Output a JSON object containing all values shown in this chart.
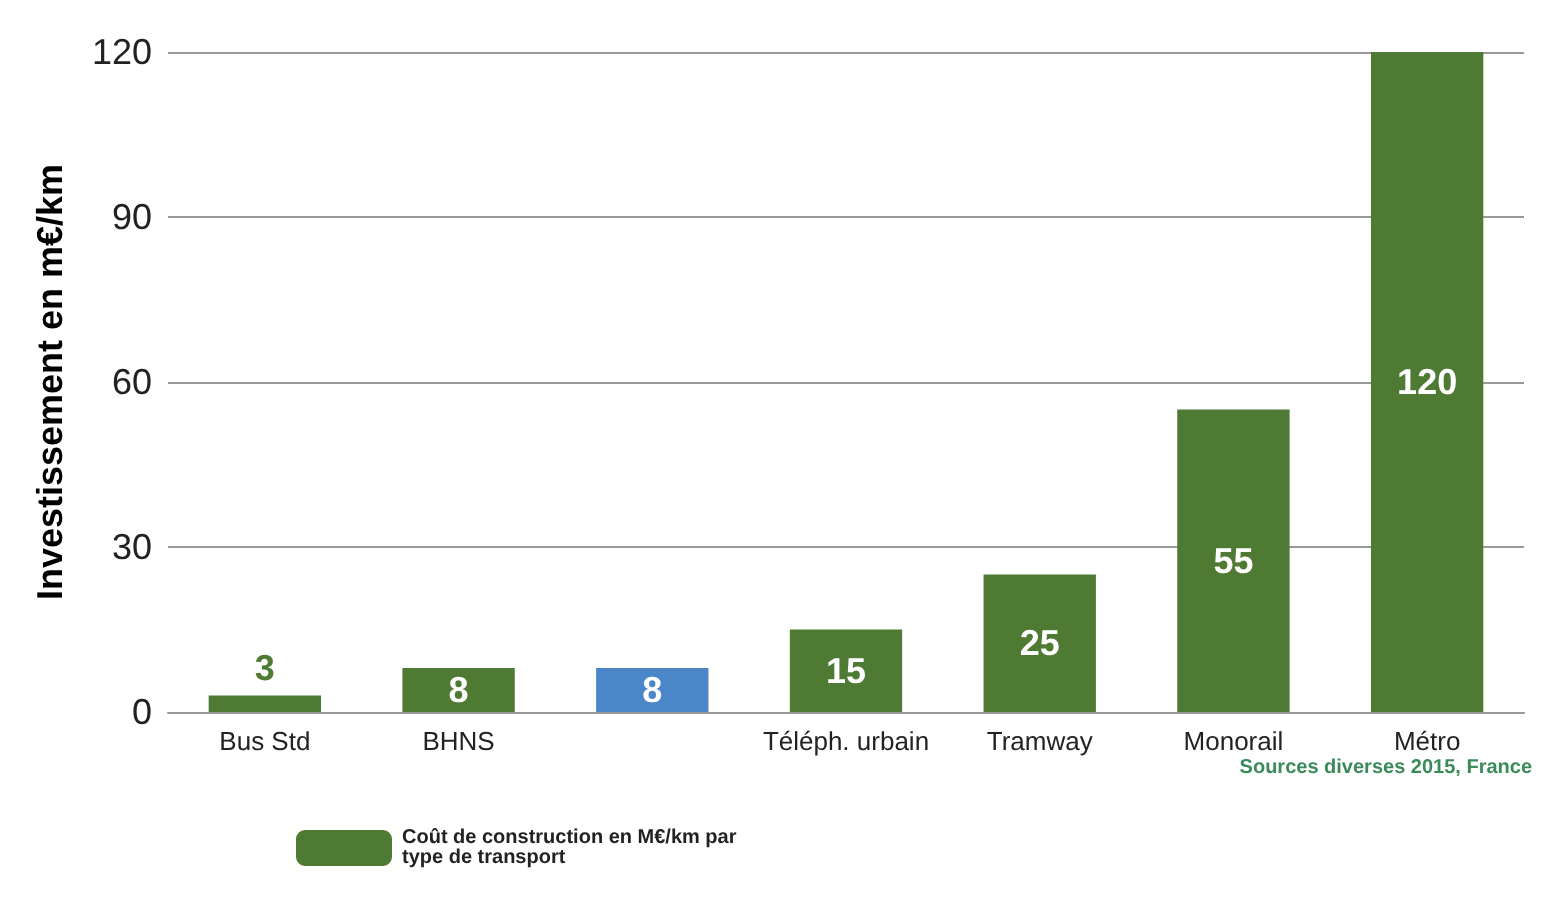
{
  "chart_data": {
    "type": "bar",
    "ylabel": "Investissement en m€/km",
    "categories": [
      "Bus Std",
      "BHNS",
      null,
      "Téléph. urbain",
      "Tramway",
      "Monorail",
      "Métro"
    ],
    "series": [
      {
        "name": "Coût de construction en M€/km par type de transport",
        "color": "#4f7a33",
        "colors": [
          "#4f7a33",
          "#4f7a33",
          "#4a86c8",
          "#4f7a33",
          "#4f7a33",
          "#4f7a33",
          "#4f7a33"
        ],
        "values": [
          3,
          8,
          8,
          15,
          25,
          55,
          120
        ]
      }
    ],
    "ylim": [
      0,
      120
    ],
    "yticks": [
      0,
      30,
      60,
      90,
      120
    ],
    "grid": "y",
    "legend": "bottom left",
    "data_labels": true,
    "annotations": [
      "Sources diverses 2015, France"
    ]
  }
}
